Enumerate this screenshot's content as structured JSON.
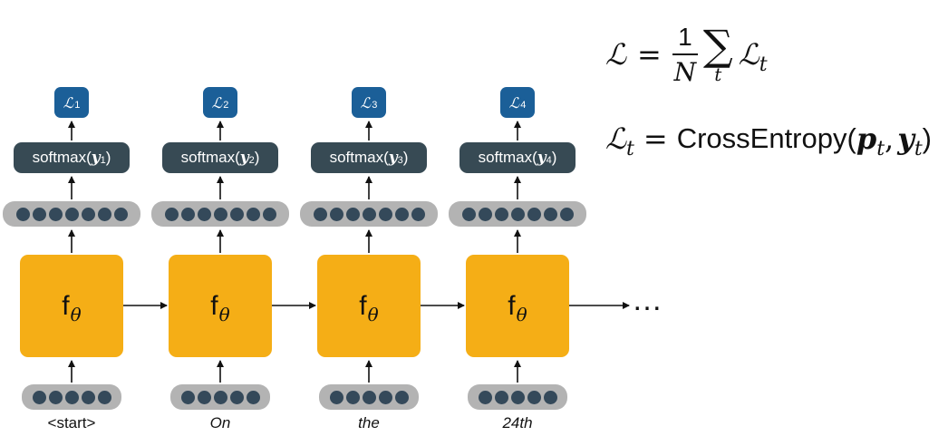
{
  "diagram": {
    "steps": [
      {
        "loss_symbol": "ℒ",
        "loss_index": "1",
        "softmax_prefix": "softmax(",
        "softmax_var": "y",
        "softmax_index": "1",
        "softmax_suffix": ")",
        "input_dots": 5,
        "hidden_dots": 7,
        "input_word": "<start>",
        "input_italic": false
      },
      {
        "loss_symbol": "ℒ",
        "loss_index": "2",
        "softmax_prefix": "softmax(",
        "softmax_var": "y",
        "softmax_index": "2",
        "softmax_suffix": ")",
        "input_dots": 5,
        "hidden_dots": 7,
        "input_word": "On",
        "input_italic": true
      },
      {
        "loss_symbol": "ℒ",
        "loss_index": "3",
        "softmax_prefix": "softmax(",
        "softmax_var": "y",
        "softmax_index": "3",
        "softmax_suffix": ")",
        "input_dots": 5,
        "hidden_dots": 7,
        "input_word": "the",
        "input_italic": true
      },
      {
        "loss_symbol": "ℒ",
        "loss_index": "4",
        "softmax_prefix": "softmax(",
        "softmax_var": "y",
        "softmax_index": "4",
        "softmax_suffix": ")",
        "input_dots": 5,
        "hidden_dots": 7,
        "input_word": "24th",
        "input_italic": true
      }
    ],
    "cell_label": "f",
    "cell_param": "θ",
    "continuation": "…",
    "colors": {
      "loss_box": "#1b5f98",
      "softmax_box": "#374a54",
      "cell": "#f5ae16",
      "pill": "#b3b3b3",
      "dot": "#34495a"
    }
  },
  "formulas": {
    "loss": {
      "lhs": "ℒ",
      "eq": "=",
      "numerator": "1",
      "denominator": "N",
      "sum_symbol": "∑",
      "sum_index": "t",
      "term": "ℒ",
      "term_sub": "t"
    },
    "per_step": {
      "lhs": "ℒ",
      "lhs_sub": "t",
      "eq": "=",
      "func": "CrossEntropy",
      "open": "(",
      "arg1": "p",
      "arg1_sub": "t",
      "comma": ",",
      "arg2": "y",
      "arg2_sub": "t",
      "close": ")"
    }
  }
}
